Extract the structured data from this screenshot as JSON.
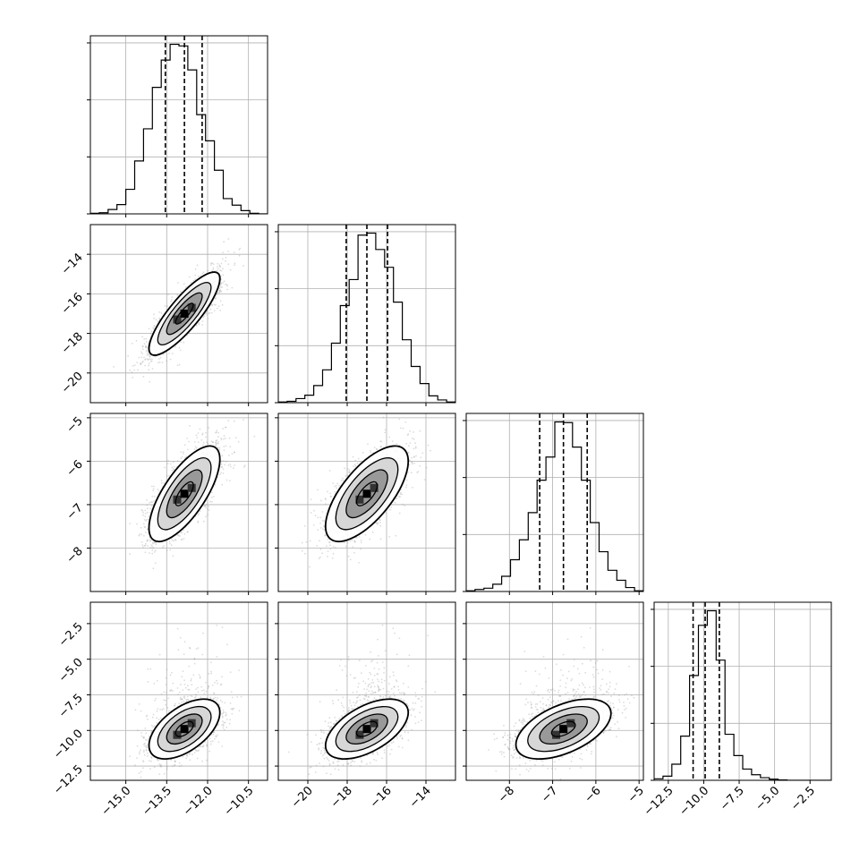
{
  "chart_data": {
    "type": "corner",
    "title": "",
    "colors": {
      "frame": "#000000",
      "grid": "#b0b0b0",
      "hist": "#000000",
      "quantile": "#000000",
      "points": "#9a9a9a",
      "contour": "#000000",
      "fill_outer": "#ffffff",
      "fill_mid": "#d0d0d0",
      "fill_inner": "#8a8a8a"
    },
    "parameters": [
      {
        "id": "p0",
        "label": "",
        "range": [
          -16.3,
          -9.8
        ],
        "ticks": [
          -15.0,
          -13.5,
          -12.0,
          -10.5
        ],
        "tick_labels": [
          "−15.0",
          "−13.5",
          "−12.0",
          "−10.5"
        ],
        "quantiles": [
          -13.55,
          -12.85,
          -12.2
        ],
        "median": -12.85,
        "sigma": 0.65,
        "hist_bins": [
          -16.3,
          -15.975,
          -15.65,
          -15.325,
          -15.0,
          -14.675,
          -14.35,
          -14.025,
          -13.7,
          -13.375,
          -13.05,
          -12.725,
          -12.4,
          -12.075,
          -11.75,
          -11.425,
          -11.1,
          -10.775,
          -10.45,
          -10.125,
          -9.8
        ],
        "hist_counts": [
          1,
          2,
          8,
          17,
          45,
          97,
          156,
          232,
          282,
          311,
          308,
          264,
          182,
          134,
          80,
          28,
          16,
          6,
          1,
          0
        ]
      },
      {
        "id": "p1",
        "label": "",
        "range": [
          -21.5,
          -12.5
        ],
        "ticks": [
          -20,
          -18,
          -16,
          -14
        ],
        "tick_labels": [
          "−20",
          "−18",
          "−16",
          "−14"
        ],
        "quantiles": [
          -18.05,
          -17.0,
          -15.95
        ],
        "median": -17.0,
        "sigma": 1.05,
        "hist_bins": [
          -21.5,
          -21.05,
          -20.6,
          -20.15,
          -19.7,
          -19.25,
          -18.8,
          -18.35,
          -17.9,
          -17.45,
          -17.0,
          -16.55,
          -16.1,
          -15.65,
          -15.2,
          -14.75,
          -14.3,
          -13.85,
          -13.4,
          -12.95,
          -12.5
        ],
        "hist_counts": [
          1,
          2,
          6,
          11,
          25,
          48,
          87,
          142,
          180,
          245,
          248,
          224,
          198,
          147,
          92,
          53,
          28,
          10,
          4,
          1
        ]
      },
      {
        "id": "p2",
        "label": "",
        "range": [
          -9.0,
          -4.9
        ],
        "ticks": [
          -8,
          -7,
          -6,
          -5
        ],
        "tick_labels": [
          "−8",
          "−7",
          "−6",
          "−5"
        ],
        "quantiles": [
          -7.3,
          -6.75,
          -6.2
        ],
        "median": -6.75,
        "sigma": 0.55,
        "hist_bins": [
          -9.0,
          -8.795,
          -8.59,
          -8.385,
          -8.18,
          -7.975,
          -7.77,
          -7.565,
          -7.36,
          -7.155,
          -6.95,
          -6.745,
          -6.54,
          -6.335,
          -6.13,
          -5.925,
          -5.72,
          -5.515,
          -5.31,
          -5.105,
          -4.9
        ],
        "hist_counts": [
          1,
          3,
          5,
          11,
          23,
          48,
          78,
          119,
          168,
          203,
          256,
          255,
          218,
          168,
          104,
          60,
          32,
          17,
          6,
          1
        ]
      },
      {
        "id": "p3",
        "label": "",
        "range": [
          -13.5,
          -1.0
        ],
        "ticks": [
          -12.5,
          -10.0,
          -7.5,
          -5.0,
          -2.5
        ],
        "tick_labels": [
          "−12.5",
          "−10.0",
          "−7.5",
          "−5.0",
          "−2.5"
        ],
        "quantiles": [
          -10.75,
          -9.9,
          -8.9
        ],
        "median": -9.9,
        "sigma": 1.05,
        "hist_bins": [
          -13.5,
          -12.875,
          -12.25,
          -11.625,
          -11.0,
          -10.375,
          -9.75,
          -9.125,
          -8.5,
          -7.875,
          -7.25,
          -6.625,
          -6.0,
          -5.375,
          -4.75,
          -4.125,
          -3.5,
          -2.875,
          -2.25,
          -1.625,
          -1.0
        ],
        "hist_counts": [
          4,
          11,
          43,
          118,
          280,
          414,
          453,
          321,
          123,
          66,
          30,
          15,
          7,
          3,
          1,
          0,
          0,
          0,
          0,
          0
        ]
      }
    ],
    "correlations": {
      "1,0": 0.84,
      "2,0": 0.72,
      "2,1": 0.68,
      "3,0": 0.55,
      "3,1": 0.55,
      "3,2": 0.52
    },
    "contour_levels_sigma": [
      0.5,
      1.0,
      1.5,
      2.0
    ],
    "contour_fill_levels": [
      "fill_outer",
      "fill_mid",
      "fill_inner"
    ],
    "grid": true,
    "legend": "none"
  }
}
